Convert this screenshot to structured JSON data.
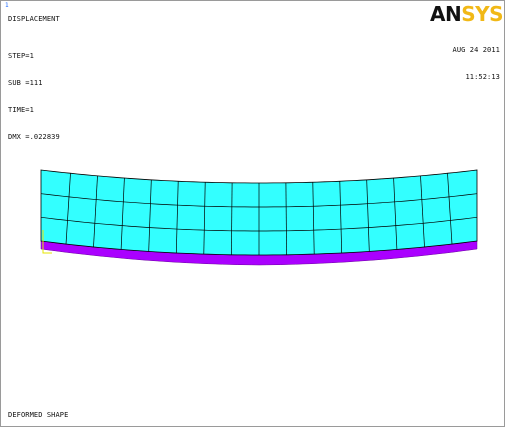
{
  "window": {
    "number": "1"
  },
  "plot": {
    "title": "DISPLACEMENT",
    "results": [
      "STEP=1",
      "SUB =111",
      "TIME=1",
      "DMX =.022839"
    ],
    "date": "AUG 24 2011",
    "time": "11:52:13",
    "footer": "DEFORMED SHAPE"
  },
  "logo": {
    "part1": "AN",
    "part2": "SYS"
  },
  "mesh": {
    "columns": 16,
    "rows": 3,
    "colors": {
      "deformed": "#33ffff",
      "undeformed": "#aa00ff",
      "lines": "#000000",
      "axes": "#e6e600"
    }
  }
}
